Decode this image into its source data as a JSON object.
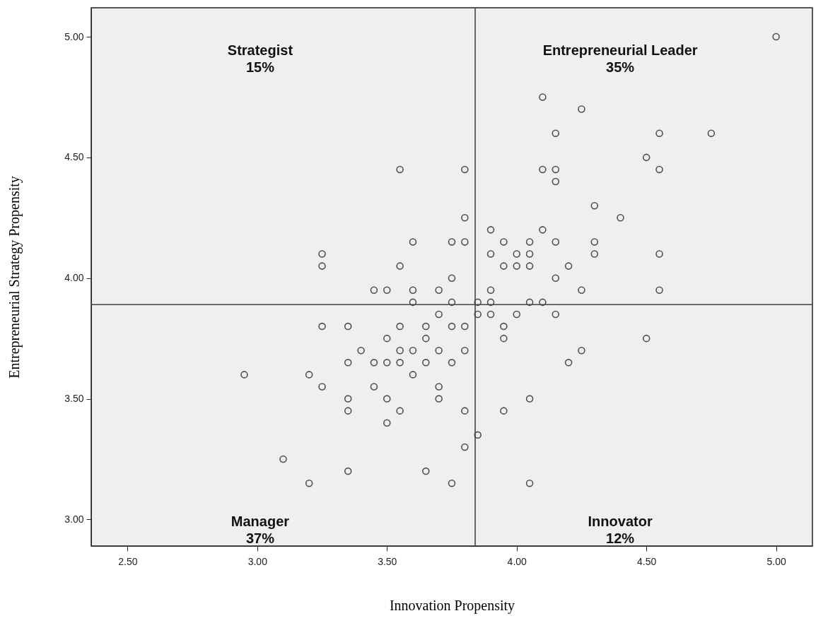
{
  "chart_data": {
    "type": "scatter",
    "xlabel": "Innovation Propensity",
    "ylabel": "Entrepreneurial Strategy Propensity",
    "color": "#505050",
    "marker": "circle",
    "grid": false,
    "xlim": [
      2.36,
      5.14
    ],
    "ylim": [
      2.89,
      5.12
    ],
    "xticks": [
      {
        "value": 2.5,
        "label": "2.50"
      },
      {
        "value": 3,
        "label": "3.00"
      },
      {
        "value": 3.5,
        "label": "3.50"
      },
      {
        "value": 4,
        "label": "4.00"
      },
      {
        "value": 4.5,
        "label": "4.50"
      },
      {
        "value": 5,
        "label": "5.00"
      }
    ],
    "yticks": [
      {
        "value": 3,
        "label": "3.00"
      },
      {
        "value": 3.5,
        "label": "3.50"
      },
      {
        "value": 4,
        "label": "4.00"
      },
      {
        "value": 4.5,
        "label": "4.50"
      },
      {
        "value": 5,
        "label": "5.00"
      }
    ],
    "ref_lines": [
      {
        "axis": "x",
        "value": 3.84
      },
      {
        "axis": "y",
        "value": 3.89
      }
    ],
    "annotations": [
      "Strategist\n15%",
      "Entrepreneurial Leader\n35%",
      "Manager\n37%",
      "Innovator\n12%"
    ],
    "x": [
      5.0,
      4.1,
      4.25,
      4.15,
      4.55,
      4.75,
      4.5,
      3.55,
      3.8,
      4.1,
      4.15,
      4.55,
      4.15,
      4.3,
      3.8,
      4.4,
      3.9,
      4.1,
      3.6,
      3.75,
      3.8,
      3.95,
      4.05,
      4.15,
      4.3,
      3.25,
      3.9,
      4.0,
      4.05,
      4.3,
      4.55,
      3.25,
      3.55,
      3.95,
      4.0,
      4.05,
      4.2,
      3.75,
      4.15,
      3.45,
      3.5,
      3.6,
      3.7,
      3.9,
      4.25,
      4.55,
      3.6,
      3.75,
      3.85,
      3.9,
      4.05,
      4.1,
      3.7,
      3.85,
      3.9,
      4.0,
      4.15,
      3.25,
      3.35,
      3.55,
      3.65,
      3.75,
      3.8,
      3.95,
      3.5,
      3.65,
      3.95,
      4.5,
      3.4,
      3.55,
      3.6,
      3.7,
      3.8,
      4.25,
      3.35,
      3.45,
      3.5,
      3.55,
      3.65,
      3.75,
      4.2,
      2.95,
      3.2,
      3.6,
      3.25,
      3.45,
      3.7,
      3.35,
      3.5,
      3.7,
      4.05,
      3.35,
      3.55,
      3.8,
      3.95,
      3.5,
      3.85,
      3.8,
      3.1,
      3.35,
      3.65,
      3.2,
      3.75,
      4.05
    ],
    "values": [
      5.0,
      4.75,
      4.7,
      4.6,
      4.6,
      4.6,
      4.5,
      4.45,
      4.45,
      4.45,
      4.45,
      4.45,
      4.4,
      4.3,
      4.25,
      4.25,
      4.2,
      4.2,
      4.15,
      4.15,
      4.15,
      4.15,
      4.15,
      4.15,
      4.15,
      4.1,
      4.1,
      4.1,
      4.1,
      4.1,
      4.1,
      4.05,
      4.05,
      4.05,
      4.05,
      4.05,
      4.05,
      4.0,
      4.0,
      3.95,
      3.95,
      3.95,
      3.95,
      3.95,
      3.95,
      3.95,
      3.9,
      3.9,
      3.9,
      3.9,
      3.9,
      3.9,
      3.85,
      3.85,
      3.85,
      3.85,
      3.85,
      3.8,
      3.8,
      3.8,
      3.8,
      3.8,
      3.8,
      3.8,
      3.75,
      3.75,
      3.75,
      3.75,
      3.7,
      3.7,
      3.7,
      3.7,
      3.7,
      3.7,
      3.65,
      3.65,
      3.65,
      3.65,
      3.65,
      3.65,
      3.65,
      3.6,
      3.6,
      3.6,
      3.55,
      3.55,
      3.55,
      3.5,
      3.5,
      3.5,
      3.5,
      3.45,
      3.45,
      3.45,
      3.45,
      3.4,
      3.35,
      3.3,
      3.25,
      3.2,
      3.2,
      3.15,
      3.15,
      3.15
    ]
  }
}
